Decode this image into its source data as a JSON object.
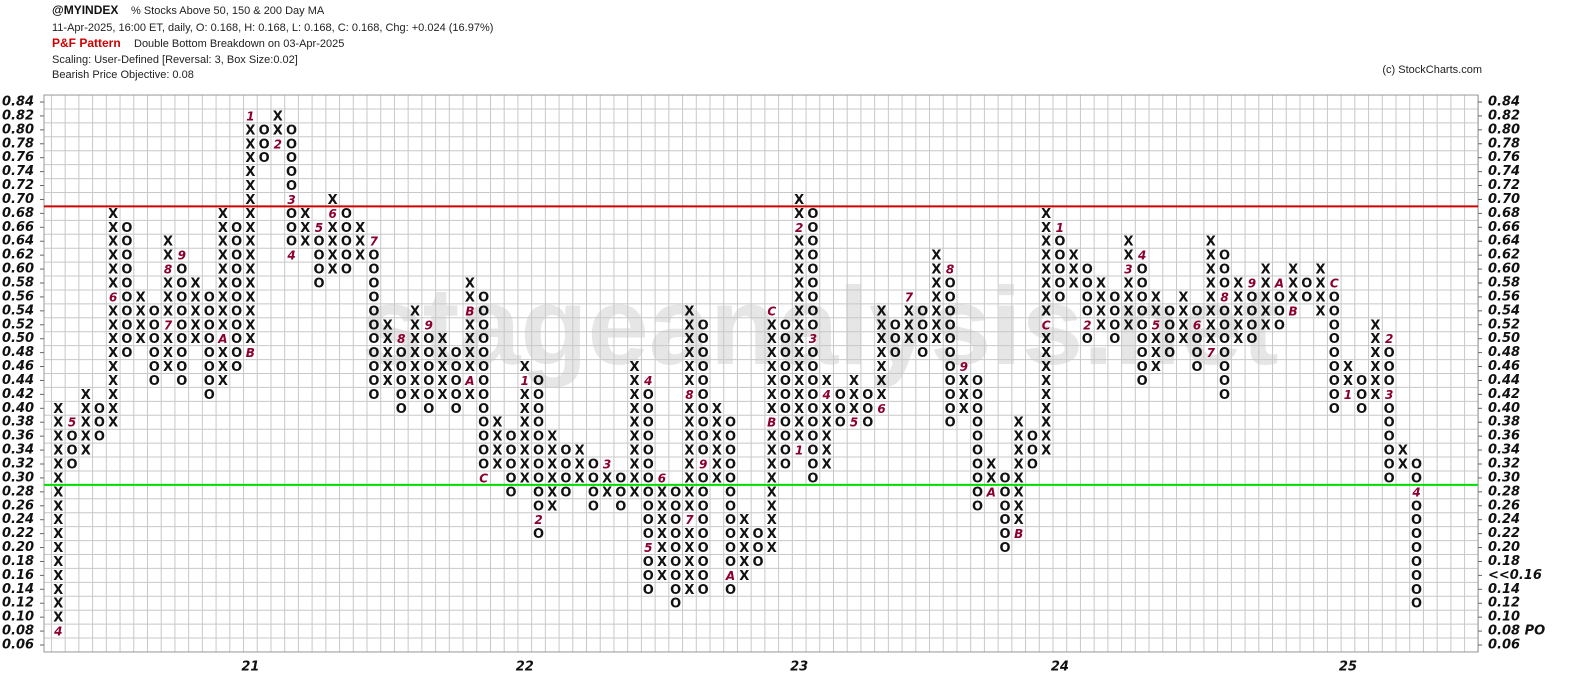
{
  "chart_data": {
    "type": "pnf",
    "symbol": "@MYINDEX",
    "title": "% Stocks Above 50, 150 & 200 Day MA",
    "quote": "11-Apr-2025, 16:00 ET, daily, O: 0.168, H: 0.168, L: 0.168, C: 0.168, Chg: +0.024 (16.97%)",
    "pattern_label": "P&F Pattern",
    "pattern": "Double Bottom Breakdown on 03-Apr-2025",
    "scaling": "Scaling: User-Defined [Reversal: 3, Box Size:0.02]",
    "objective": "Bearish Price Objective: 0.08",
    "credit": "(c) StockCharts.com",
    "watermark": "stageanalysis.net",
    "box_size": 0.02,
    "ylim": [
      0.06,
      0.84
    ],
    "yticks": [
      0.06,
      {
        "value": 0.08,
        "label": "0.08",
        "color": "#e00000"
      },
      {
        "value": 0.1,
        "label": "0.10"
      },
      0.12,
      0.14,
      {
        "value": 0.16,
        "label": "0.16",
        "color": "#e00000"
      },
      0.18,
      {
        "value": 0.2,
        "label": "0.20"
      },
      0.22,
      0.24,
      0.26,
      0.28,
      {
        "value": 0.3,
        "label": "0.30"
      },
      0.32,
      0.34,
      0.36,
      0.38,
      {
        "value": 0.4,
        "label": "0.40"
      },
      0.42,
      0.44,
      0.46,
      0.48,
      {
        "value": 0.5,
        "label": "0.50"
      },
      0.52,
      0.54,
      0.56,
      0.58,
      {
        "value": 0.6,
        "label": "0.60"
      },
      0.62,
      0.64,
      0.66,
      0.68,
      {
        "value": 0.7,
        "label": "0.70"
      },
      0.72,
      0.74,
      0.76,
      0.78,
      {
        "value": 0.8,
        "label": "0.80"
      },
      0.82,
      0.84
    ],
    "yticks_right": [
      0.06,
      {
        "value": 0.08,
        "label": "0.08 PO",
        "color": "#e00000"
      },
      {
        "value": 0.1,
        "label": "0.10"
      },
      0.12,
      0.14,
      {
        "value": 0.16,
        "label": "<<0.16",
        "color": "#e00000"
      },
      0.18,
      {
        "value": 0.2,
        "label": "0.20"
      },
      0.22,
      0.24,
      0.26,
      0.28,
      {
        "value": 0.3,
        "label": "0.30"
      },
      0.32,
      0.34,
      0.36,
      0.38,
      {
        "value": 0.4,
        "label": "0.40"
      },
      0.42,
      0.44,
      0.46,
      0.48,
      {
        "value": 0.5,
        "label": "0.50"
      },
      0.52,
      0.54,
      0.56,
      0.58,
      {
        "value": 0.6,
        "label": "0.60"
      },
      0.62,
      0.64,
      0.66,
      0.68,
      {
        "value": 0.7,
        "label": "0.70"
      },
      0.72,
      0.74,
      0.76,
      0.78,
      {
        "value": 0.8,
        "label": "0.80"
      },
      0.82,
      0.84
    ],
    "lines": [
      {
        "value": 0.69,
        "color": "#d00000"
      },
      {
        "value": 0.29,
        "color": "#00dd00"
      }
    ],
    "columns": [
      {
        "type": "X",
        "low": 0.08,
        "high": 0.4,
        "marks": [
          {
            "value": 0.08,
            "label": "4"
          }
        ]
      },
      {
        "type": "O",
        "low": 0.32,
        "high": 0.38,
        "marks": [
          {
            "value": 0.38,
            "label": "5"
          }
        ]
      },
      {
        "type": "X",
        "low": 0.34,
        "high": 0.42,
        "marks": []
      },
      {
        "type": "O",
        "low": 0.36,
        "high": 0.4,
        "marks": []
      },
      {
        "type": "X",
        "low": 0.38,
        "high": 0.68,
        "marks": [
          {
            "value": 0.56,
            "label": "6"
          }
        ]
      },
      {
        "type": "O",
        "low": 0.48,
        "high": 0.66,
        "marks": []
      },
      {
        "type": "X",
        "low": 0.5,
        "high": 0.56,
        "marks": []
      },
      {
        "type": "O",
        "low": 0.44,
        "high": 0.54,
        "marks": []
      },
      {
        "type": "X",
        "low": 0.46,
        "high": 0.64,
        "marks": [
          {
            "value": 0.6,
            "label": "8"
          },
          {
            "value": 0.52,
            "label": "7"
          }
        ]
      },
      {
        "type": "O",
        "low": 0.44,
        "high": 0.62,
        "marks": [
          {
            "value": 0.62,
            "label": "9"
          }
        ]
      },
      {
        "type": "X",
        "low": 0.5,
        "high": 0.58,
        "marks": []
      },
      {
        "type": "O",
        "low": 0.42,
        "high": 0.56,
        "marks": []
      },
      {
        "type": "X",
        "low": 0.44,
        "high": 0.68,
        "marks": [
          {
            "value": 0.5,
            "label": "A"
          }
        ]
      },
      {
        "type": "O",
        "low": 0.46,
        "high": 0.66,
        "marks": []
      },
      {
        "type": "X",
        "low": 0.48,
        "high": 0.82,
        "year": "21",
        "marks": [
          {
            "value": 0.82,
            "label": "1"
          },
          {
            "value": 0.48,
            "label": "B"
          }
        ]
      },
      {
        "type": "O",
        "low": 0.76,
        "high": 0.8,
        "marks": []
      },
      {
        "type": "X",
        "low": 0.78,
        "high": 0.82,
        "marks": [
          {
            "value": 0.78,
            "label": "2"
          }
        ]
      },
      {
        "type": "O",
        "low": 0.62,
        "high": 0.8,
        "marks": [
          {
            "value": 0.7,
            "label": "3"
          },
          {
            "value": 0.62,
            "label": "4"
          }
        ]
      },
      {
        "type": "X",
        "low": 0.64,
        "high": 0.68,
        "marks": []
      },
      {
        "type": "O",
        "low": 0.58,
        "high": 0.66,
        "marks": [
          {
            "value": 0.66,
            "label": "5"
          }
        ]
      },
      {
        "type": "X",
        "low": 0.6,
        "high": 0.7,
        "marks": [
          {
            "value": 0.68,
            "label": "6"
          }
        ]
      },
      {
        "type": "O",
        "low": 0.6,
        "high": 0.68,
        "marks": []
      },
      {
        "type": "X",
        "low": 0.62,
        "high": 0.66,
        "marks": []
      },
      {
        "type": "O",
        "low": 0.42,
        "high": 0.64,
        "marks": [
          {
            "value": 0.64,
            "label": "7"
          }
        ]
      },
      {
        "type": "X",
        "low": 0.44,
        "high": 0.52,
        "marks": []
      },
      {
        "type": "O",
        "low": 0.4,
        "high": 0.5,
        "marks": [
          {
            "value": 0.5,
            "label": "8"
          }
        ]
      },
      {
        "type": "X",
        "low": 0.42,
        "high": 0.54,
        "marks": []
      },
      {
        "type": "O",
        "low": 0.4,
        "high": 0.52,
        "marks": [
          {
            "value": 0.52,
            "label": "9"
          }
        ]
      },
      {
        "type": "X",
        "low": 0.42,
        "high": 0.5,
        "marks": []
      },
      {
        "type": "O",
        "low": 0.4,
        "high": 0.48,
        "marks": []
      },
      {
        "type": "X",
        "low": 0.42,
        "high": 0.58,
        "marks": [
          {
            "value": 0.54,
            "label": "B"
          },
          {
            "value": 0.44,
            "label": "A"
          }
        ]
      },
      {
        "type": "O",
        "low": 0.3,
        "high": 0.56,
        "marks": [
          {
            "value": 0.3,
            "label": "C"
          }
        ]
      },
      {
        "type": "X",
        "low": 0.32,
        "high": 0.38,
        "marks": []
      },
      {
        "type": "O",
        "low": 0.28,
        "high": 0.36,
        "marks": []
      },
      {
        "type": "X",
        "low": 0.3,
        "high": 0.46,
        "year": "22",
        "marks": [
          {
            "value": 0.44,
            "label": "1"
          }
        ]
      },
      {
        "type": "O",
        "low": 0.22,
        "high": 0.44,
        "marks": [
          {
            "value": 0.24,
            "label": "2"
          }
        ]
      },
      {
        "type": "X",
        "low": 0.26,
        "high": 0.36,
        "marks": []
      },
      {
        "type": "O",
        "low": 0.28,
        "high": 0.34,
        "marks": []
      },
      {
        "type": "X",
        "low": 0.3,
        "high": 0.34,
        "marks": []
      },
      {
        "type": "O",
        "low": 0.26,
        "high": 0.32,
        "marks": []
      },
      {
        "type": "X",
        "low": 0.28,
        "high": 0.32,
        "marks": [
          {
            "value": 0.32,
            "label": "3"
          }
        ]
      },
      {
        "type": "O",
        "low": 0.26,
        "high": 0.3,
        "marks": []
      },
      {
        "type": "X",
        "low": 0.28,
        "high": 0.46,
        "marks": []
      },
      {
        "type": "O",
        "low": 0.14,
        "high": 0.44,
        "marks": [
          {
            "value": 0.44,
            "label": "4"
          },
          {
            "value": 0.2,
            "label": "5"
          }
        ]
      },
      {
        "type": "X",
        "low": 0.16,
        "high": 0.3,
        "marks": [
          {
            "value": 0.3,
            "label": "6"
          }
        ]
      },
      {
        "type": "O",
        "low": 0.12,
        "high": 0.28,
        "marks": []
      },
      {
        "type": "X",
        "low": 0.14,
        "high": 0.54,
        "marks": [
          {
            "value": 0.24,
            "label": "7"
          },
          {
            "value": 0.42,
            "label": "8"
          }
        ]
      },
      {
        "type": "O",
        "low": 0.14,
        "high": 0.52,
        "marks": [
          {
            "value": 0.32,
            "label": "9"
          }
        ]
      },
      {
        "type": "X",
        "low": 0.3,
        "high": 0.4,
        "marks": []
      },
      {
        "type": "O",
        "low": 0.14,
        "high": 0.38,
        "marks": [
          {
            "value": 0.16,
            "label": "A"
          }
        ]
      },
      {
        "type": "X",
        "low": 0.16,
        "high": 0.24,
        "marks": []
      },
      {
        "type": "O",
        "low": 0.18,
        "high": 0.22,
        "marks": []
      },
      {
        "type": "X",
        "low": 0.2,
        "high": 0.54,
        "marks": [
          {
            "value": 0.38,
            "label": "B"
          },
          {
            "value": 0.54,
            "label": "C"
          }
        ]
      },
      {
        "type": "O",
        "low": 0.32,
        "high": 0.52,
        "marks": []
      },
      {
        "type": "X",
        "low": 0.34,
        "high": 0.7,
        "year": "23",
        "marks": [
          {
            "value": 0.34,
            "label": "1"
          },
          {
            "value": 0.66,
            "label": "2"
          }
        ]
      },
      {
        "type": "O",
        "low": 0.3,
        "high": 0.68,
        "marks": [
          {
            "value": 0.5,
            "label": "3"
          }
        ]
      },
      {
        "type": "X",
        "low": 0.32,
        "high": 0.44,
        "marks": [
          {
            "value": 0.42,
            "label": "4"
          }
        ]
      },
      {
        "type": "O",
        "low": 0.38,
        "high": 0.42,
        "marks": []
      },
      {
        "type": "X",
        "low": 0.38,
        "high": 0.44,
        "marks": [
          {
            "value": 0.38,
            "label": "5"
          }
        ]
      },
      {
        "type": "O",
        "low": 0.38,
        "high": 0.42,
        "marks": []
      },
      {
        "type": "X",
        "low": 0.4,
        "high": 0.54,
        "marks": [
          {
            "value": 0.4,
            "label": "6"
          }
        ]
      },
      {
        "type": "O",
        "low": 0.48,
        "high": 0.52,
        "marks": []
      },
      {
        "type": "X",
        "low": 0.5,
        "high": 0.56,
        "marks": [
          {
            "value": 0.56,
            "label": "7"
          }
        ]
      },
      {
        "type": "O",
        "low": 0.48,
        "high": 0.54,
        "marks": []
      },
      {
        "type": "X",
        "low": 0.5,
        "high": 0.62,
        "marks": []
      },
      {
        "type": "O",
        "low": 0.38,
        "high": 0.6,
        "marks": [
          {
            "value": 0.6,
            "label": "8"
          }
        ]
      },
      {
        "type": "X",
        "low": 0.4,
        "high": 0.46,
        "marks": [
          {
            "value": 0.46,
            "label": "9"
          }
        ]
      },
      {
        "type": "O",
        "low": 0.26,
        "high": 0.44,
        "marks": []
      },
      {
        "type": "X",
        "low": 0.28,
        "high": 0.32,
        "marks": [
          {
            "value": 0.28,
            "label": "A"
          }
        ]
      },
      {
        "type": "O",
        "low": 0.2,
        "high": 0.3,
        "marks": []
      },
      {
        "type": "X",
        "low": 0.22,
        "high": 0.38,
        "marks": [
          {
            "value": 0.22,
            "label": "B"
          }
        ]
      },
      {
        "type": "O",
        "low": 0.32,
        "high": 0.36,
        "marks": []
      },
      {
        "type": "X",
        "low": 0.34,
        "high": 0.68,
        "marks": [
          {
            "value": 0.52,
            "label": "C"
          }
        ]
      },
      {
        "type": "O",
        "low": 0.56,
        "high": 0.66,
        "year": "24",
        "marks": [
          {
            "value": 0.66,
            "label": "1"
          }
        ]
      },
      {
        "type": "X",
        "low": 0.58,
        "high": 0.62,
        "marks": []
      },
      {
        "type": "O",
        "low": 0.5,
        "high": 0.6,
        "marks": [
          {
            "value": 0.52,
            "label": "2"
          }
        ]
      },
      {
        "type": "X",
        "low": 0.52,
        "high": 0.58,
        "marks": []
      },
      {
        "type": "O",
        "low": 0.5,
        "high": 0.56,
        "marks": []
      },
      {
        "type": "X",
        "low": 0.52,
        "high": 0.64,
        "marks": [
          {
            "value": 0.6,
            "label": "3"
          }
        ]
      },
      {
        "type": "O",
        "low": 0.44,
        "high": 0.62,
        "marks": [
          {
            "value": 0.62,
            "label": "4"
          }
        ]
      },
      {
        "type": "X",
        "low": 0.46,
        "high": 0.56,
        "marks": [
          {
            "value": 0.52,
            "label": "5"
          }
        ]
      },
      {
        "type": "O",
        "low": 0.48,
        "high": 0.54,
        "marks": []
      },
      {
        "type": "X",
        "low": 0.5,
        "high": 0.56,
        "marks": []
      },
      {
        "type": "O",
        "low": 0.46,
        "high": 0.54,
        "marks": [
          {
            "value": 0.52,
            "label": "6"
          }
        ]
      },
      {
        "type": "X",
        "low": 0.48,
        "high": 0.64,
        "marks": [
          {
            "value": 0.48,
            "label": "7"
          }
        ]
      },
      {
        "type": "O",
        "low": 0.42,
        "high": 0.62,
        "marks": [
          {
            "value": 0.56,
            "label": "8"
          }
        ]
      },
      {
        "type": "X",
        "low": 0.5,
        "high": 0.58,
        "marks": []
      },
      {
        "type": "O",
        "low": 0.5,
        "high": 0.58,
        "marks": [
          {
            "value": 0.58,
            "label": "9"
          }
        ]
      },
      {
        "type": "X",
        "low": 0.52,
        "high": 0.6,
        "marks": []
      },
      {
        "type": "O",
        "low": 0.52,
        "high": 0.58,
        "marks": [
          {
            "value": 0.58,
            "label": "A"
          }
        ]
      },
      {
        "type": "X",
        "low": 0.54,
        "high": 0.6,
        "marks": [
          {
            "value": 0.54,
            "label": "B"
          }
        ]
      },
      {
        "type": "O",
        "low": 0.56,
        "high": 0.58,
        "marks": []
      },
      {
        "type": "X",
        "low": 0.54,
        "high": 0.6,
        "marks": []
      },
      {
        "type": "O",
        "low": 0.4,
        "high": 0.58,
        "marks": [
          {
            "value": 0.58,
            "label": "C"
          }
        ]
      },
      {
        "type": "X",
        "low": 0.42,
        "high": 0.46,
        "year": "25",
        "marks": [
          {
            "value": 0.42,
            "label": "1"
          }
        ]
      },
      {
        "type": "O",
        "low": 0.4,
        "high": 0.44,
        "marks": []
      },
      {
        "type": "X",
        "low": 0.42,
        "high": 0.52,
        "marks": []
      },
      {
        "type": "O",
        "low": 0.3,
        "high": 0.5,
        "marks": [
          {
            "value": 0.5,
            "label": "2"
          },
          {
            "value": 0.42,
            "label": "3"
          }
        ]
      },
      {
        "type": "X",
        "low": 0.32,
        "high": 0.34,
        "marks": []
      },
      {
        "type": "O",
        "low": 0.12,
        "high": 0.32,
        "marks": [
          {
            "value": 0.28,
            "label": "4"
          }
        ]
      }
    ]
  }
}
